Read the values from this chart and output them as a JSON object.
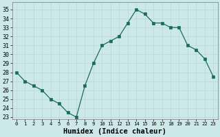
{
  "x": [
    0,
    1,
    2,
    3,
    4,
    5,
    6,
    7,
    8,
    9,
    10,
    11,
    12,
    13,
    14,
    15,
    16,
    17,
    18,
    19,
    20,
    21,
    22,
    23
  ],
  "y": [
    28,
    27,
    26.5,
    26,
    25,
    24.5,
    23.5,
    23,
    26.5,
    29,
    31,
    31.5,
    32,
    33.5,
    35,
    34.5,
    33.5,
    33.5,
    33,
    33,
    31,
    30.5,
    29.5,
    27.5
  ],
  "xlabel": "Humidex (Indice chaleur)",
  "xlim": [
    -0.5,
    23.5
  ],
  "ylim": [
    22.8,
    35.8
  ],
  "yticks": [
    23,
    24,
    25,
    26,
    27,
    28,
    29,
    30,
    31,
    32,
    33,
    34,
    35
  ],
  "xticks": [
    0,
    1,
    2,
    3,
    4,
    5,
    6,
    7,
    8,
    9,
    10,
    11,
    12,
    13,
    14,
    15,
    16,
    17,
    18,
    19,
    20,
    21,
    22,
    23
  ],
  "line_color": "#1a6b5a",
  "marker": "s",
  "marker_size": 2.5,
  "bg_color": "#cce8e8",
  "grid_color": "#b8d8d8",
  "xlabel_fontsize": 7.5,
  "tick_fontsize": 6.0,
  "xtick_fontsize": 5.2
}
